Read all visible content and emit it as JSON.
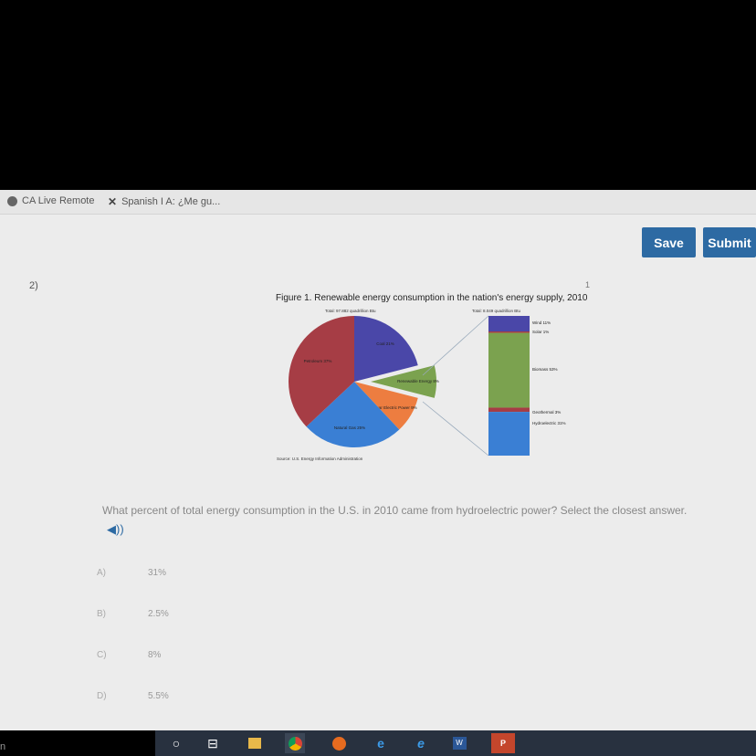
{
  "bookmarks": [
    {
      "label": "CA Live Remote",
      "icon": "ca-live-icon"
    },
    {
      "label": "Spanish I A: ¿Me gu...",
      "icon": "x-logo-icon"
    }
  ],
  "toolbar": {
    "save_label": "Save",
    "submit_label": "Submit"
  },
  "question": {
    "number": "2)",
    "text": "What percent of total energy consumption in the U.S. in 2010 came from hydroelectric power? Select the closest answer.",
    "speaker_icon": "speaker-icon",
    "page_mark": "1"
  },
  "figure": {
    "title": "Figure 1. Renewable energy consumption in the nation's energy supply, 2010",
    "pie_total": "Total: 97.882 quadrillion Btu",
    "bar_total": "Total: 8.049 quadrillion Btu",
    "source": "Source: U.S. Energy Information Administration"
  },
  "chart_data": [
    {
      "type": "pie",
      "title": "Figure 1. Renewable energy consumption in the nation's energy supply, 2010",
      "subtitle": "Total: 97.882 quadrillion Btu",
      "slices": [
        {
          "label": "Coal 21%",
          "value": 21,
          "color": "#4a47a8"
        },
        {
          "label": "Renewable Energy 8%",
          "value": 8,
          "color": "#7ba24f"
        },
        {
          "label": "Nuclear Electric Power 9%",
          "value": 9,
          "color": "#ed7d40"
        },
        {
          "label": "Natural Gas 25%",
          "value": 25,
          "color": "#3a7fd4"
        },
        {
          "label": "Petroleum 37%",
          "value": 37,
          "color": "#a63d45"
        }
      ]
    },
    {
      "type": "bar",
      "subtitle": "Total: 8.049 quadrillion Btu",
      "stacked": true,
      "segments": [
        {
          "label": "Wind 11%",
          "value": 11,
          "color": "#4a47a8"
        },
        {
          "label": "Solar 1%",
          "value": 1,
          "color": "#a63d45"
        },
        {
          "label": "Biomass 53%",
          "value": 53,
          "color": "#7ba24f"
        },
        {
          "label": "Geothermal 3%",
          "value": 3,
          "color": "#a63d45"
        },
        {
          "label": "Hydroelectric 31%",
          "value": 31,
          "color": "#3a7fd4"
        }
      ]
    }
  ],
  "options": [
    {
      "letter": "A)",
      "text": "31%"
    },
    {
      "letter": "B)",
      "text": "2.5%"
    },
    {
      "letter": "C)",
      "text": "8%"
    },
    {
      "letter": "D)",
      "text": "5.5%"
    }
  ],
  "taskbar": {
    "icons": [
      "search-icon",
      "task-view-icon",
      "file-explorer-icon",
      "chrome-icon",
      "firefox-icon",
      "edge-icon",
      "internet-explorer-icon",
      "word-icon",
      "powerpoint-icon"
    ],
    "left_glyph": "n"
  }
}
